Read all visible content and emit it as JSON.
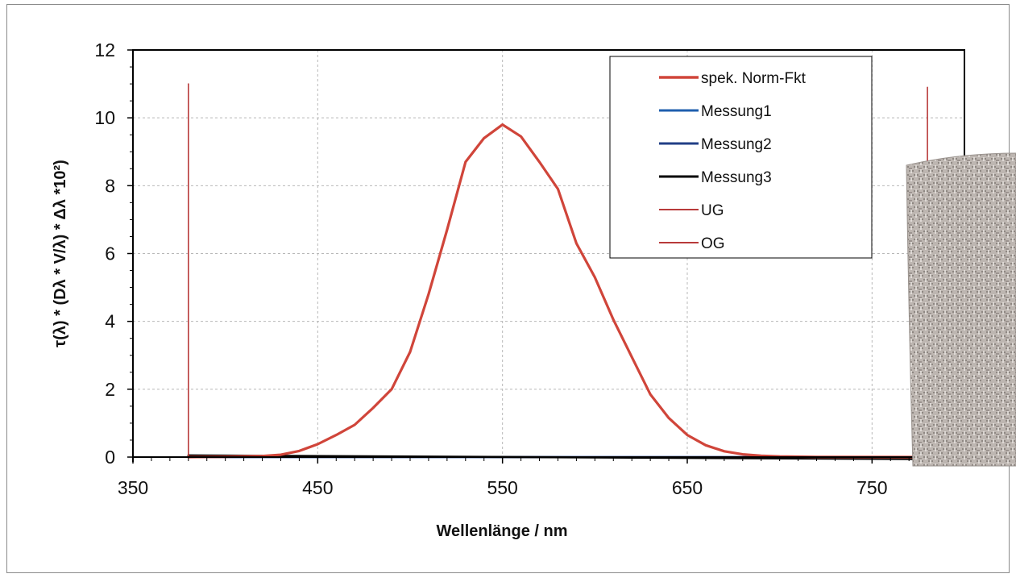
{
  "chart_data": {
    "type": "line",
    "title": "",
    "xlabel": "Wellenlänge / nm",
    "ylabel": "τ(λ) * (Dλ * V/λ) * Δλ *10²)",
    "xlim": [
      350,
      800
    ],
    "ylim": [
      0,
      12
    ],
    "x_ticks": [
      350,
      450,
      550,
      650,
      750
    ],
    "y_ticks": [
      0,
      2,
      4,
      6,
      8,
      10,
      12
    ],
    "grid": "dashed major gridlines on both axes",
    "legend_position": "top-right (inside plot)",
    "series": [
      {
        "name": "spek. Norm-Fkt",
        "color": "#d0453a",
        "points": [
          [
            380,
            0
          ],
          [
            400,
            0.01
          ],
          [
            420,
            0.03
          ],
          [
            430,
            0.07
          ],
          [
            440,
            0.18
          ],
          [
            450,
            0.38
          ],
          [
            460,
            0.65
          ],
          [
            470,
            0.95
          ],
          [
            480,
            1.45
          ],
          [
            490,
            2.0
          ],
          [
            500,
            3.1
          ],
          [
            510,
            4.8
          ],
          [
            520,
            6.7
          ],
          [
            530,
            8.7
          ],
          [
            540,
            9.4
          ],
          [
            550,
            9.8
          ],
          [
            560,
            9.45
          ],
          [
            570,
            8.7
          ],
          [
            580,
            7.9
          ],
          [
            590,
            6.3
          ],
          [
            600,
            5.3
          ],
          [
            610,
            4.05
          ],
          [
            620,
            2.95
          ],
          [
            630,
            1.85
          ],
          [
            640,
            1.15
          ],
          [
            650,
            0.65
          ],
          [
            660,
            0.35
          ],
          [
            670,
            0.17
          ],
          [
            680,
            0.08
          ],
          [
            690,
            0.04
          ],
          [
            700,
            0.02
          ],
          [
            720,
            0.005
          ],
          [
            780,
            0
          ]
        ]
      },
      {
        "name": "Messung1",
        "color": "#1f5fae",
        "points": [
          [
            380,
            0
          ],
          [
            780,
            0
          ]
        ]
      },
      {
        "name": "Messung2",
        "color": "#223f86",
        "points": [
          [
            380,
            0
          ],
          [
            780,
            0
          ]
        ]
      },
      {
        "name": "Messung3",
        "color": "#000000",
        "points": [
          [
            380,
            0.05
          ],
          [
            780,
            -0.06
          ]
        ]
      },
      {
        "name": "UG",
        "color": "#b83a3a",
        "points": [
          [
            380,
            0
          ],
          [
            380,
            11
          ]
        ]
      },
      {
        "name": "OG",
        "color": "#b83a3a",
        "points": [
          [
            780,
            0
          ],
          [
            780,
            10.9
          ]
        ]
      }
    ]
  },
  "overlay": {
    "fabric_color": "#b9b2ad"
  }
}
